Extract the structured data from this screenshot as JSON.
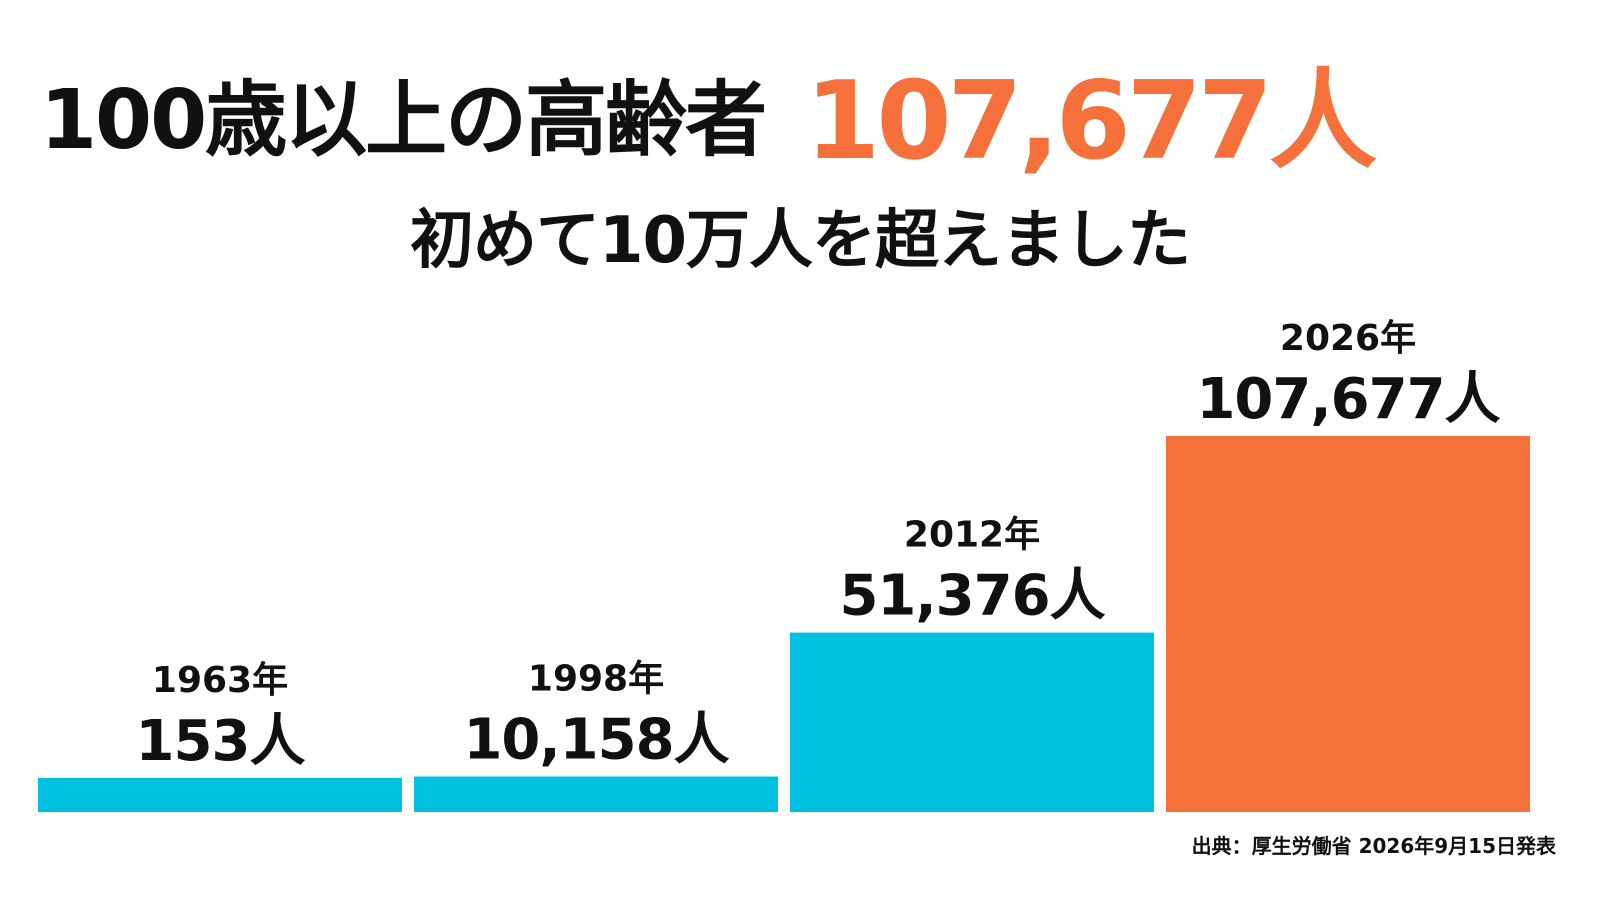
{
  "headline": {
    "lead": "100歳以上の高齢者",
    "highlight": "107,677人"
  },
  "subheadline": "初めて10万人を超えました",
  "source": "出典：厚生労働省 2026年9月15日発表",
  "colors": {
    "accent": "#F5703A",
    "bar": "#00C2E0",
    "text": "#111111"
  },
  "chart_data": {
    "type": "bar",
    "title": "100歳以上の高齢者",
    "categories": [
      "1963年",
      "1998年",
      "2012年",
      "2026年"
    ],
    "values": [
      153,
      10158,
      51376,
      107677
    ],
    "data_labels": [
      "153人",
      "10,158人",
      "51,376人",
      "107,677人"
    ],
    "highlight_index": 3,
    "ylim": [
      0,
      107677
    ],
    "grid": false,
    "legend": "none",
    "xlabel": "",
    "ylabel": ""
  }
}
